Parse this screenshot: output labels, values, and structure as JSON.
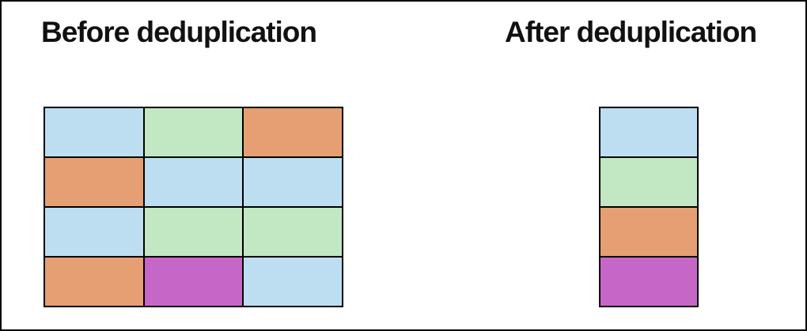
{
  "page": {
    "background": "#ffffff",
    "border_color": "#000000"
  },
  "titles": {
    "before": "Before deduplication",
    "after": "After deduplication"
  },
  "colors": {
    "blue": "#BDDEF1",
    "green": "#C2E7C3",
    "orange": "#E59F72",
    "purple": "#C667C8"
  },
  "before_grid": {
    "rows": [
      [
        "blue",
        "green",
        "orange"
      ],
      [
        "orange",
        "blue",
        "blue"
      ],
      [
        "blue",
        "green",
        "green"
      ],
      [
        "orange",
        "purple",
        "blue"
      ]
    ]
  },
  "after_column": {
    "cells": [
      "blue",
      "green",
      "orange",
      "purple"
    ]
  }
}
